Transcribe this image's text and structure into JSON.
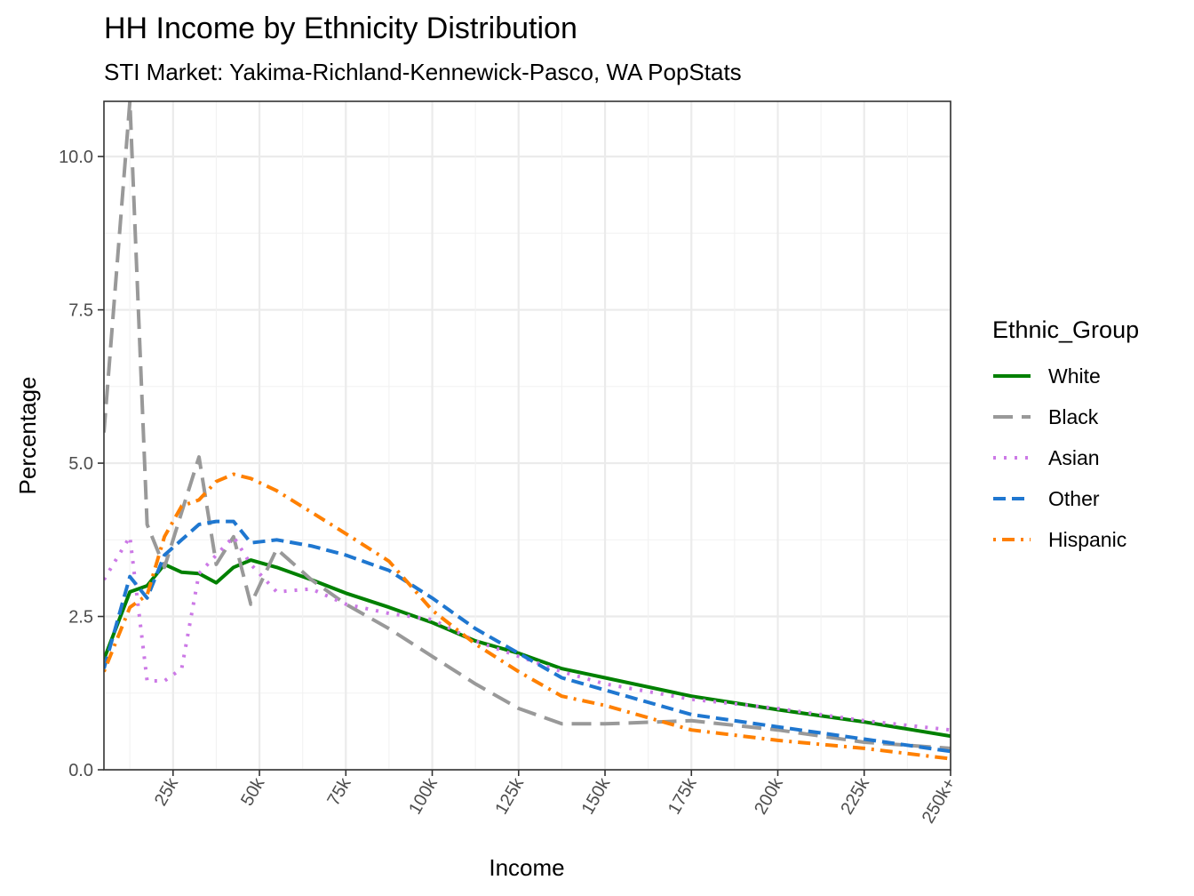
{
  "chart_data": {
    "type": "line",
    "title": "HH Income by Ethnicity Distribution",
    "subtitle": "STI Market: Yakima-Richland-Kennewick-Pasco, WA PopStats",
    "xlabel": "Income",
    "ylabel": "Percentage",
    "xlim": [
      5,
      250
    ],
    "ylim": [
      0,
      10.9
    ],
    "x_ticks": [
      25,
      50,
      75,
      100,
      125,
      150,
      175,
      200,
      225,
      250
    ],
    "x_tick_labels": [
      "25k",
      "50k",
      "75k",
      "100k",
      "125k",
      "150k",
      "175k",
      "200k",
      "225k",
      "250k+"
    ],
    "y_ticks": [
      0,
      2.5,
      5,
      7.5,
      10
    ],
    "y_tick_labels": [
      "0.0",
      "2.5",
      "5.0",
      "7.5",
      "10.0"
    ],
    "grid": true,
    "legend": {
      "title": "Ethnic_Group",
      "position": "right"
    },
    "series": [
      {
        "name": "White",
        "color": "#008000",
        "dash": "solid",
        "x": [
          5,
          12.5,
          17.5,
          22.5,
          27.5,
          32.5,
          37.5,
          42.5,
          47.5,
          55,
          65,
          75,
          87.5,
          100,
          112.5,
          125,
          137.5,
          150,
          175,
          200,
          225,
          250
        ],
        "y": [
          1.8,
          2.9,
          3.0,
          3.35,
          3.22,
          3.2,
          3.05,
          3.3,
          3.42,
          3.3,
          3.1,
          2.88,
          2.65,
          2.4,
          2.1,
          1.9,
          1.65,
          1.5,
          1.2,
          0.98,
          0.78,
          0.55
        ]
      },
      {
        "name": "Black",
        "color": "#999999",
        "dash": "longdash",
        "x": [
          5,
          12.5,
          17.5,
          22.5,
          27.5,
          32.5,
          37.5,
          42.5,
          47.5,
          55,
          65,
          75,
          87.5,
          100,
          112.5,
          125,
          137.5,
          150,
          175,
          200,
          225,
          250
        ],
        "y": [
          5.5,
          10.9,
          4.0,
          3.3,
          4.2,
          5.1,
          3.35,
          3.8,
          2.7,
          3.6,
          3.1,
          2.7,
          2.3,
          1.85,
          1.4,
          1.0,
          0.75,
          0.75,
          0.8,
          0.65,
          0.45,
          0.35
        ]
      },
      {
        "name": "Asian",
        "color": "#cc79e6",
        "dash": "dotted",
        "x": [
          5,
          12.5,
          17.5,
          22.5,
          27.5,
          32.5,
          37.5,
          42.5,
          47.5,
          55,
          65,
          75,
          87.5,
          100,
          112.5,
          125,
          137.5,
          150,
          175,
          200,
          225,
          250
        ],
        "y": [
          3.1,
          3.8,
          1.45,
          1.45,
          1.65,
          3.2,
          3.5,
          3.8,
          3.35,
          2.9,
          2.95,
          2.7,
          2.55,
          2.45,
          2.1,
          1.85,
          1.6,
          1.4,
          1.15,
          1.0,
          0.8,
          0.65
        ]
      },
      {
        "name": "Other",
        "color": "#1f77d0",
        "dash": "dashed",
        "x": [
          5,
          12.5,
          17.5,
          22.5,
          27.5,
          32.5,
          37.5,
          42.5,
          47.5,
          55,
          65,
          75,
          87.5,
          100,
          112.5,
          125,
          137.5,
          150,
          175,
          200,
          225,
          250
        ],
        "y": [
          1.65,
          3.15,
          2.8,
          3.5,
          3.75,
          4.0,
          4.05,
          4.05,
          3.7,
          3.75,
          3.65,
          3.5,
          3.25,
          2.8,
          2.3,
          1.9,
          1.5,
          1.3,
          0.9,
          0.7,
          0.5,
          0.3
        ]
      },
      {
        "name": "Hispanic",
        "color": "#ff8000",
        "dash": "dotdash",
        "x": [
          5,
          12.5,
          17.5,
          22.5,
          27.5,
          32.5,
          37.5,
          42.5,
          47.5,
          55,
          65,
          75,
          87.5,
          100,
          112.5,
          125,
          137.5,
          150,
          175,
          200,
          225,
          250
        ],
        "y": [
          1.6,
          2.65,
          2.85,
          3.8,
          4.3,
          4.4,
          4.7,
          4.82,
          4.75,
          4.55,
          4.2,
          3.85,
          3.4,
          2.6,
          2.05,
          1.6,
          1.2,
          1.05,
          0.65,
          0.48,
          0.35,
          0.18
        ]
      }
    ]
  }
}
